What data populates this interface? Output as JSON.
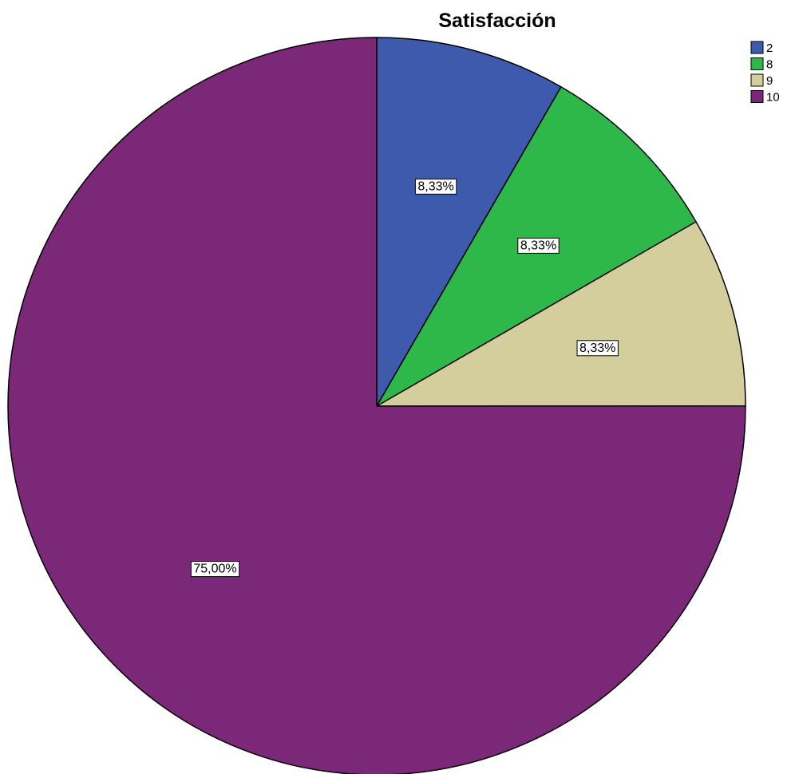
{
  "chart_data": {
    "type": "pie",
    "title": "Satisfacción",
    "start_angle_deg": 0,
    "direction": "clockwise",
    "legend_position": "top-right",
    "slices": [
      {
        "label": "2",
        "value": 8.33,
        "value_label": "8,33%",
        "color": "#3D5AAD"
      },
      {
        "label": "8",
        "value": 8.33,
        "value_label": "8,33%",
        "color": "#2FB84A"
      },
      {
        "label": "9",
        "value": 8.33,
        "value_label": "8,33%",
        "color": "#D4CE9C"
      },
      {
        "label": "10",
        "value": 75.0,
        "value_label": "75,00%",
        "color": "#7B2878"
      }
    ]
  }
}
